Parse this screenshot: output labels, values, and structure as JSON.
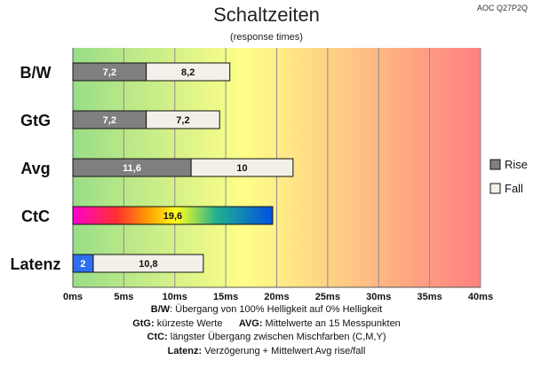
{
  "title": "Schaltzeiten",
  "subtitle": "(response times)",
  "model": "AOC Q27P2Q",
  "chart_data": {
    "type": "bar",
    "orientation": "horizontal",
    "stacked": true,
    "categories": [
      "B/W",
      "GtG",
      "Avg",
      "CtC",
      "Latenz"
    ],
    "series": [
      {
        "name": "Rise",
        "color": "#7f7f7f",
        "values": [
          7.2,
          7.2,
          11.6,
          null,
          null
        ]
      },
      {
        "name": "Fall",
        "color": "#f2f0e8",
        "values": [
          8.2,
          7.2,
          10,
          null,
          null
        ]
      }
    ],
    "ctc": {
      "value": 19.6,
      "label": "19,6"
    },
    "latency": {
      "delay": 2,
      "delay_label": "2",
      "avg": 10.8,
      "avg_label": "10,8",
      "delay_color": "#2e6ff0"
    },
    "bar_labels": [
      [
        "7,2",
        "8,2"
      ],
      [
        "7,2",
        "7,2"
      ],
      [
        "11,6",
        "10"
      ],
      [
        "19,6"
      ],
      [
        "2",
        "10,8"
      ]
    ],
    "xlim": [
      0,
      40
    ],
    "xticks": [
      0,
      5,
      10,
      15,
      20,
      25,
      30,
      35,
      40
    ],
    "xtick_labels": [
      "0ms",
      "5ms",
      "10ms",
      "15ms",
      "20ms",
      "25ms",
      "30ms",
      "35ms",
      "40ms"
    ],
    "grid": true,
    "legend_position": "right",
    "background_gradient": [
      "#99dd88",
      "#ffff88",
      "#ff8080"
    ]
  },
  "notes": {
    "line1_key": "B/W",
    "line1_text": ":  Übergang von 100% Helligkeit auf 0% Helligkeit",
    "line2a_key": "GtG:",
    "line2a_text": " kürzeste  Werte",
    "line2b_key": "AVG:",
    "line2b_text": " Mittelwerte  an 15 Messpunkten",
    "line3_key": "CtC:",
    "line3_text": " längster Übergang  zwischen Mischfarben (C,M,Y)",
    "line4_key": "Latenz:",
    "line4_text": " Verzögerung  + Mittelwert  Avg rise/fall"
  }
}
